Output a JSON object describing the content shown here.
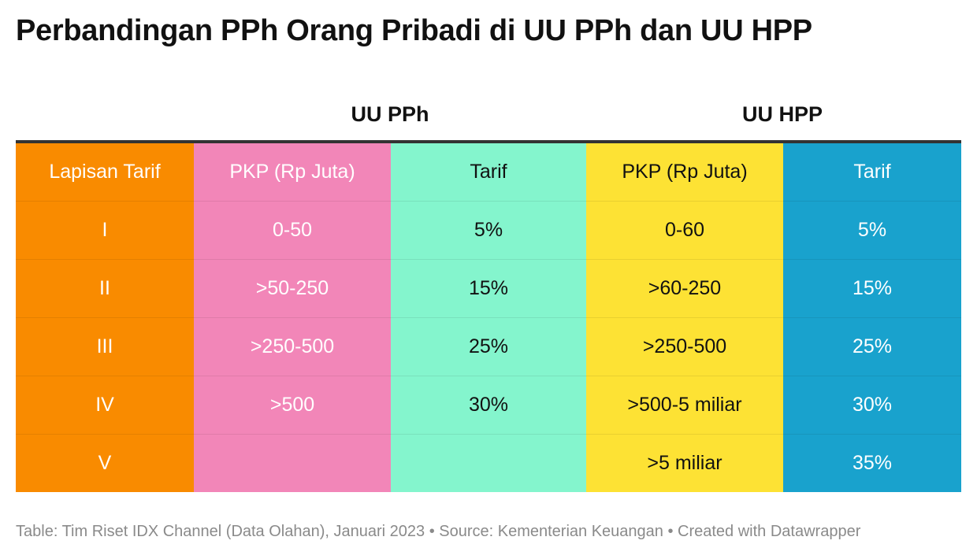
{
  "title": "Perbandingan PPh Orang Pribadi di UU PPh dan UU HPP",
  "colors": {
    "lapisan": "#f98b00",
    "pph_pkp": "#f286b8",
    "pph_tarif": "#84f5cd",
    "hpp_pkp": "#fde234",
    "hpp_tarif": "#19a2cd"
  },
  "chart_data": {
    "type": "table",
    "title": "Perbandingan PPh Orang Pribadi di UU PPh dan UU HPP",
    "column_groups": [
      "UU PPh",
      "UU HPP"
    ],
    "columns": [
      "Lapisan Tarif",
      "PKP (Rp Juta)",
      "Tarif",
      "PKP (Rp Juta)",
      "Tarif"
    ],
    "rows": [
      [
        "I",
        "0-50",
        "5%",
        "0-60",
        "5%"
      ],
      [
        "II",
        ">50-250",
        "15%",
        ">60-250",
        "15%"
      ],
      [
        "III",
        ">250-500",
        "25%",
        ">250-500",
        "25%"
      ],
      [
        "IV",
        ">500",
        "30%",
        ">500-5 miliar",
        "30%"
      ],
      [
        "V",
        "",
        "",
        ">5 miliar",
        "35%"
      ]
    ]
  },
  "footer": "Table: Tim Riset IDX Channel (Data Olahan), Januari 2023 • Source: Kementerian Keuangan • Created with Datawrapper"
}
